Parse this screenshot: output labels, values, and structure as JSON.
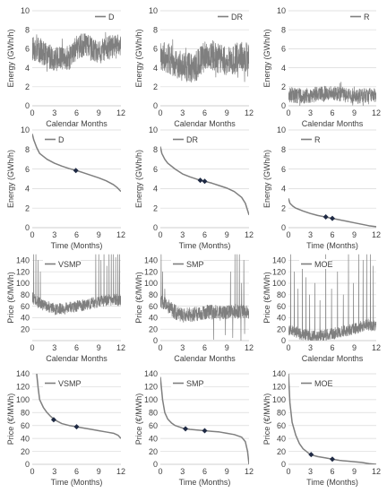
{
  "chart_data": [
    {
      "type": "line",
      "panel": "R1C1",
      "legend": "D",
      "ylabel": "Energy (GWh/h)",
      "xlabel": "Calendar Months",
      "ylim": [
        0,
        10
      ],
      "yticks": [
        0,
        2,
        4,
        6,
        8,
        10
      ],
      "xlim": [
        0,
        12
      ],
      "xticks": [
        0,
        3,
        6,
        9,
        12
      ],
      "legend_placement": "top-right",
      "grid": "horizontal",
      "series": [
        {
          "name": "D",
          "kind": "noisy",
          "x": [
            0,
            1,
            2,
            3,
            4,
            5,
            6,
            7,
            8,
            9,
            10,
            11,
            12
          ],
          "y": [
            6.0,
            5.8,
            5.3,
            5.0,
            4.9,
            5.0,
            6.2,
            6.4,
            6.0,
            5.6,
            5.9,
            6.3,
            6.2
          ],
          "amp": 1.3
        }
      ]
    },
    {
      "type": "line",
      "panel": "R1C2",
      "legend": "DR",
      "ylabel": "Energy (GWh/h)",
      "xlabel": "Calendar Months",
      "ylim": [
        0,
        10
      ],
      "yticks": [
        0,
        2,
        4,
        6,
        8,
        10
      ],
      "xlim": [
        0,
        12
      ],
      "xticks": [
        0,
        3,
        6,
        9,
        12
      ],
      "legend_placement": "top-right",
      "grid": "horizontal",
      "series": [
        {
          "name": "DR",
          "kind": "noisy",
          "x": [
            0,
            1,
            2,
            3,
            4,
            5,
            6,
            7,
            8,
            9,
            10,
            11,
            12
          ],
          "y": [
            5.2,
            5.0,
            4.6,
            4.2,
            4.0,
            4.2,
            5.2,
            5.4,
            5.0,
            4.6,
            4.9,
            5.3,
            5.1
          ],
          "amp": 1.6
        }
      ]
    },
    {
      "type": "line",
      "panel": "R1C3",
      "legend": "R",
      "ylabel": "Energy (GWh/h)",
      "xlabel": "Calendar Months",
      "ylim": [
        0,
        10
      ],
      "yticks": [
        0,
        2,
        4,
        6,
        8,
        10
      ],
      "xlim": [
        0,
        12
      ],
      "xticks": [
        0,
        3,
        6,
        9,
        12
      ],
      "legend_placement": "top-right",
      "grid": "horizontal",
      "series": [
        {
          "name": "R",
          "kind": "noisy",
          "x": [
            0,
            1,
            2,
            3,
            4,
            5,
            6,
            7,
            8,
            9,
            10,
            11,
            12
          ],
          "y": [
            1.2,
            1.1,
            1.0,
            1.1,
            1.2,
            1.3,
            1.4,
            1.2,
            1.1,
            1.0,
            1.0,
            1.1,
            1.2
          ],
          "amp": 0.8
        }
      ]
    },
    {
      "type": "line",
      "panel": "R2C1",
      "legend": "D",
      "ylabel": "Energy (GWh/h)",
      "xlabel": "Time (Months)",
      "ylim": [
        0,
        10
      ],
      "yticks": [
        0,
        2,
        4,
        6,
        8,
        10
      ],
      "xlim": [
        0,
        12
      ],
      "xticks": [
        0,
        3,
        6,
        9,
        12
      ],
      "legend_placement": "top-left",
      "grid": "horizontal",
      "series": [
        {
          "name": "D",
          "kind": "smooth",
          "x": [
            0,
            0.2,
            0.6,
            1,
            2,
            3,
            4,
            5,
            6,
            7,
            8,
            9,
            10,
            11,
            11.5,
            12
          ],
          "y": [
            9.6,
            9.0,
            8.2,
            7.6,
            7.0,
            6.6,
            6.3,
            6.05,
            5.85,
            5.6,
            5.35,
            5.1,
            4.8,
            4.4,
            4.1,
            3.7
          ]
        }
      ],
      "markers": [
        {
          "x": 5.9,
          "y": 5.85
        }
      ]
    },
    {
      "type": "line",
      "panel": "R2C2",
      "legend": "DR",
      "ylabel": "Energy (GWh/h)",
      "xlabel": "Time (Months)",
      "ylim": [
        0,
        10
      ],
      "yticks": [
        0,
        2,
        4,
        6,
        8,
        10
      ],
      "xlim": [
        0,
        12
      ],
      "xticks": [
        0,
        3,
        6,
        9,
        12
      ],
      "legend_placement": "top-left",
      "grid": "horizontal",
      "series": [
        {
          "name": "DR",
          "kind": "smooth",
          "x": [
            0,
            0.2,
            0.6,
            1,
            2,
            3,
            4,
            5,
            6,
            7,
            8,
            9,
            10,
            11,
            11.5,
            12
          ],
          "y": [
            8.3,
            7.6,
            7.0,
            6.6,
            6.0,
            5.5,
            5.2,
            4.95,
            4.75,
            4.55,
            4.3,
            4.05,
            3.7,
            3.1,
            2.5,
            1.3
          ]
        }
      ],
      "markers": [
        {
          "x": 5.4,
          "y": 4.85
        },
        {
          "x": 6.0,
          "y": 4.75
        }
      ]
    },
    {
      "type": "line",
      "panel": "R2C3",
      "legend": "R",
      "ylabel": "Energy (GWh/h)",
      "xlabel": "Time (Months)",
      "ylim": [
        0,
        10
      ],
      "yticks": [
        0,
        2,
        4,
        6,
        8,
        10
      ],
      "xlim": [
        0,
        12
      ],
      "xticks": [
        0,
        3,
        6,
        9,
        12
      ],
      "legend_placement": "top-left",
      "grid": "horizontal",
      "series": [
        {
          "name": "R",
          "kind": "smooth",
          "x": [
            0,
            0.2,
            0.6,
            1,
            2,
            3,
            4,
            5,
            6,
            7,
            8,
            9,
            10,
            11,
            12
          ],
          "y": [
            3.0,
            2.5,
            2.2,
            2.0,
            1.7,
            1.45,
            1.25,
            1.1,
            0.95,
            0.8,
            0.65,
            0.5,
            0.35,
            0.2,
            0.1
          ]
        }
      ],
      "markers": [
        {
          "x": 5.1,
          "y": 1.1
        },
        {
          "x": 6.0,
          "y": 0.95
        }
      ]
    },
    {
      "type": "line",
      "panel": "R3C1",
      "legend": "VSMP",
      "ylabel": "Price (€/MWh)",
      "xlabel": "Calendar Months",
      "ylim": [
        0,
        150
      ],
      "yticks": [
        20,
        40,
        60,
        80,
        100,
        120,
        140
      ],
      "xlim": [
        0,
        12
      ],
      "xticks": [
        0,
        3,
        6,
        9,
        12
      ],
      "legend_placement": "top-left",
      "grid": "horizontal",
      "series": [
        {
          "name": "VSMP",
          "kind": "spiky",
          "x": [
            0,
            1,
            2,
            3,
            4,
            5,
            6,
            7,
            8,
            9,
            10,
            11,
            12
          ],
          "y": [
            75,
            65,
            60,
            55,
            55,
            57,
            60,
            62,
            65,
            68,
            70,
            72,
            70
          ],
          "amp": 10,
          "spike_x": [
            0.2,
            0.5,
            0.8,
            1.1,
            8.6,
            9.0,
            9.3,
            9.7,
            10.1,
            10.4,
            10.7,
            11.0,
            11.3,
            11.6,
            11.8
          ],
          "spike_y": [
            150,
            150,
            140,
            120,
            150,
            150,
            140,
            150,
            130,
            150,
            150,
            150,
            145,
            150,
            150
          ]
        }
      ]
    },
    {
      "type": "line",
      "panel": "R3C2",
      "legend": "SMP",
      "ylabel": "Price (€/MWh)",
      "xlabel": "Calendar Months",
      "ylim": [
        0,
        150
      ],
      "yticks": [
        0,
        20,
        40,
        60,
        80,
        100,
        120,
        140
      ],
      "xlim": [
        0,
        12
      ],
      "xticks": [
        0,
        3,
        6,
        9,
        12
      ],
      "legend_placement": "top-left",
      "grid": "horizontal",
      "series": [
        {
          "name": "SMP",
          "kind": "spiky",
          "x": [
            0,
            1,
            2,
            3,
            4,
            5,
            6,
            7,
            8,
            9,
            10,
            11,
            12
          ],
          "y": [
            70,
            60,
            50,
            45,
            45,
            47,
            50,
            50,
            48,
            50,
            52,
            50,
            48
          ],
          "amp": 13,
          "spike_x": [
            0.1,
            0.3,
            0.6,
            9.5,
            10.1,
            10.4,
            10.7,
            11.0,
            11.3
          ],
          "spike_y": [
            150,
            120,
            90,
            120,
            150,
            150,
            150,
            100,
            140
          ],
          "dip_x": [
            7.2,
            8.8,
            9.8,
            10.9,
            11.4
          ],
          "dip_y": [
            2,
            10,
            5,
            0,
            12
          ]
        }
      ]
    },
    {
      "type": "line",
      "panel": "R3C3",
      "legend": "MOE",
      "ylabel": "Price (€/MWh)",
      "xlabel": "Calendar Months",
      "ylim": [
        0,
        150
      ],
      "yticks": [
        0,
        20,
        40,
        60,
        80,
        100,
        120,
        140
      ],
      "xlim": [
        0,
        12
      ],
      "xticks": [
        0,
        3,
        6,
        9,
        12
      ],
      "legend_placement": "top-left",
      "grid": "horizontal",
      "series": [
        {
          "name": "MOE",
          "kind": "spiky",
          "x": [
            0,
            1,
            2,
            3,
            4,
            5,
            6,
            7,
            8,
            9,
            10,
            11,
            12
          ],
          "y": [
            20,
            15,
            10,
            8,
            8,
            10,
            12,
            15,
            18,
            20,
            25,
            28,
            25
          ],
          "amp": 10,
          "spike_x": [
            0.3,
            0.8,
            1.3,
            1.9,
            2.4,
            2.9,
            3.6,
            4.3,
            5.1,
            5.9,
            6.7,
            7.5,
            8.2,
            8.9,
            9.6,
            10.2,
            10.7,
            11.2,
            11.6
          ],
          "spike_y": [
            150,
            120,
            90,
            140,
            110,
            80,
            100,
            70,
            150,
            90,
            120,
            80,
            150,
            100,
            150,
            140,
            150,
            150,
            130
          ]
        }
      ]
    },
    {
      "type": "line",
      "panel": "R4C1",
      "legend": "VSMP",
      "ylabel": "Price (€/MWh)",
      "xlabel": "Time (Months)",
      "ylim": [
        0,
        140
      ],
      "yticks": [
        0,
        20,
        40,
        60,
        80,
        100,
        120,
        140
      ],
      "xlim": [
        0,
        12
      ],
      "xticks": [
        0,
        3,
        6,
        9,
        12
      ],
      "legend_placement": "top-left",
      "grid": "horizontal",
      "series": [
        {
          "name": "VSMP",
          "kind": "smooth",
          "x": [
            0.6,
            0.8,
            1,
            1.5,
            2,
            2.5,
            3,
            4,
            5,
            6,
            7,
            8,
            9,
            10,
            11,
            11.6,
            12
          ],
          "y": [
            140,
            118,
            100,
            88,
            80,
            74,
            69,
            63,
            60,
            58,
            56,
            54,
            52,
            50,
            48,
            45,
            40
          ]
        }
      ],
      "markers": [
        {
          "x": 2.9,
          "y": 69
        },
        {
          "x": 6.0,
          "y": 58
        }
      ]
    },
    {
      "type": "line",
      "panel": "R4C2",
      "legend": "SMP",
      "ylabel": "Price (€/MWh)",
      "xlabel": "Time (Months)",
      "ylim": [
        0,
        140
      ],
      "yticks": [
        0,
        20,
        40,
        60,
        80,
        100,
        120,
        140
      ],
      "xlim": [
        0,
        12
      ],
      "xticks": [
        0,
        3,
        6,
        9,
        12
      ],
      "legend_placement": "top-left",
      "grid": "horizontal",
      "series": [
        {
          "name": "SMP",
          "kind": "smooth",
          "x": [
            0,
            0.3,
            0.6,
            1,
            1.5,
            2,
            3,
            4,
            5,
            6,
            7,
            8,
            9,
            10,
            11,
            11.5,
            11.8,
            12
          ],
          "y": [
            135,
            100,
            80,
            70,
            64,
            60,
            56,
            54,
            53,
            52,
            51,
            50,
            48,
            46,
            42,
            35,
            20,
            0
          ]
        }
      ],
      "markers": [
        {
          "x": 3.4,
          "y": 55
        },
        {
          "x": 6.0,
          "y": 52
        }
      ]
    },
    {
      "type": "line",
      "panel": "R4C3",
      "legend": "MOE",
      "ylabel": "Price (€/MWh)",
      "xlabel": "Time (Months)",
      "ylim": [
        0,
        140
      ],
      "yticks": [
        0,
        20,
        40,
        60,
        80,
        100,
        120,
        140
      ],
      "xlim": [
        0,
        12
      ],
      "xticks": [
        0,
        3,
        6,
        9,
        12
      ],
      "legend_placement": "top-left",
      "grid": "horizontal",
      "series": [
        {
          "name": "MOE",
          "kind": "smooth",
          "x": [
            0,
            0.2,
            0.5,
            1,
            1.5,
            2,
            3,
            4,
            5,
            6,
            7,
            8,
            9,
            10,
            11,
            12
          ],
          "y": [
            140,
            95,
            65,
            45,
            32,
            24,
            15,
            12,
            10,
            8,
            6,
            5,
            4,
            3,
            1,
            0
          ]
        }
      ],
      "markers": [
        {
          "x": 3.1,
          "y": 15
        },
        {
          "x": 6.0,
          "y": 8
        }
      ]
    }
  ]
}
